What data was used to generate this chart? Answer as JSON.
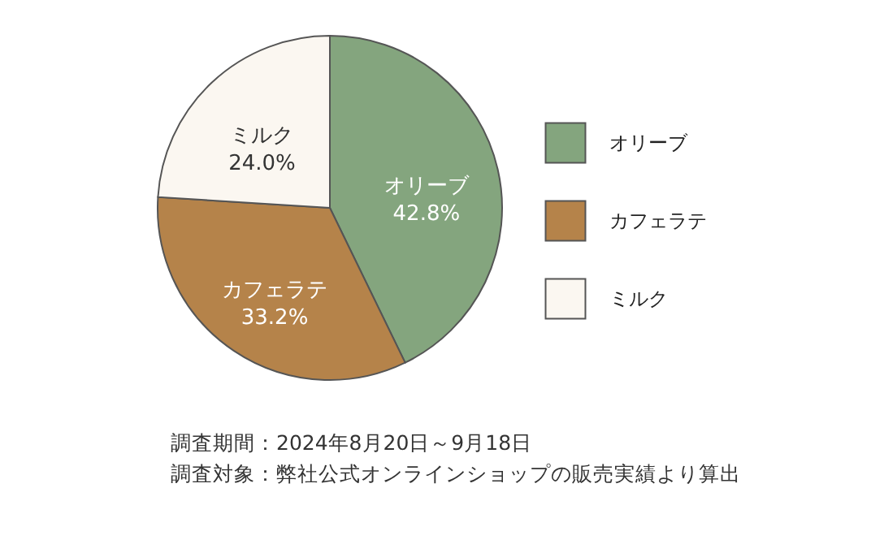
{
  "chart_data": {
    "type": "pie",
    "categories": [
      "オリーブ",
      "カフェラテ",
      "ミルク"
    ],
    "values": [
      42.8,
      33.2,
      24.0
    ],
    "colors": [
      "#84a57e",
      "#b5834a",
      "#fbf7f1"
    ],
    "value_labels": [
      "42.8%",
      "33.2%",
      "24.0%"
    ],
    "legend": "right",
    "annotations": [
      "調査期間：2024年8月20日～9月18日",
      "調査対象：弊社公式オンラインショップの販売実績より算出"
    ]
  }
}
